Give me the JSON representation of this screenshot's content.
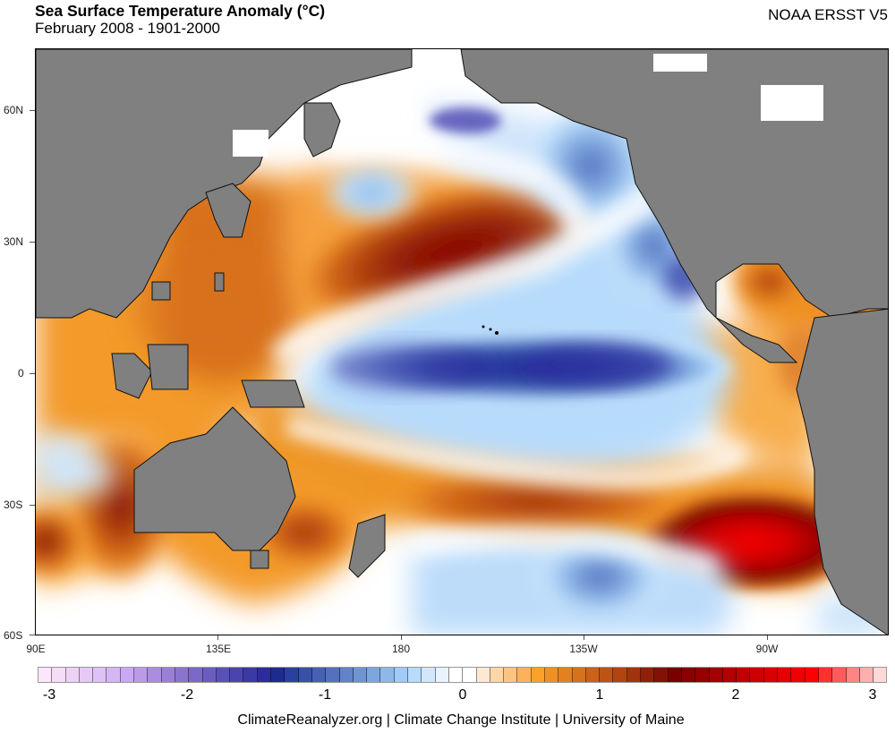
{
  "header": {
    "title": "Sea Surface Temperature Anomaly (°C)",
    "subtitle": "February 2008 - 1901-2000",
    "dataset": "NOAA ERSST V5"
  },
  "map": {
    "lat_ticks": [
      "60N",
      "30N",
      "0",
      "30S",
      "60S"
    ],
    "lon_ticks": [
      "90E",
      "135E",
      "180",
      "135W",
      "90W"
    ],
    "land_color": "#808080",
    "coast_color": "#000000"
  },
  "chart_data": {
    "type": "heatmap",
    "title": "Sea Surface Temperature Anomaly (°C)",
    "subtitle": "February 2008 - 1901-2000",
    "projection": "equirectangular",
    "lon_range": [
      "90E",
      "60W"
    ],
    "lat_range": [
      "74N",
      "60S"
    ],
    "xlabel": "",
    "ylabel": "",
    "colorbar": {
      "min": -3,
      "max": 3,
      "step": 0.1,
      "tick_labels": [
        "-3",
        "-2",
        "-1",
        "0",
        "1",
        "2",
        "3"
      ],
      "colors": [
        "#fbe6fa",
        "#f5dcf8",
        "#eed2f6",
        "#e6caf5",
        "#dec2f5",
        "#d4b6f5",
        "#caa8f5",
        "#bb9aea",
        "#aa8ce0",
        "#9a7fd8",
        "#8b74d0",
        "#7b68c8",
        "#6b5dc0",
        "#5b50b8",
        "#4b44b0",
        "#3b38a8",
        "#2c2c9c",
        "#1e2a90",
        "#2940a0",
        "#3750aa",
        "#4560b4",
        "#5470be",
        "#6282ca",
        "#6f94d4",
        "#7ea6de",
        "#8eb8e8",
        "#a0cbf6",
        "#b7dbfb",
        "#d2e7fb",
        "#e8f3fd",
        "#ffffff",
        "#ffffff",
        "#fde8d2",
        "#fdd6a8",
        "#fdc380",
        "#fcb15a",
        "#fba028",
        "#ef9024",
        "#e48020",
        "#d8711c",
        "#cc6218",
        "#bf5314",
        "#b24410",
        "#a2340c",
        "#921f08",
        "#841105",
        "#7a0000",
        "#880000",
        "#960000",
        "#a40000",
        "#b20000",
        "#c00000",
        "#cc0000",
        "#d80000",
        "#e40000",
        "#f00000",
        "#ff0000",
        "#ff3030",
        "#ff5a5a",
        "#ff8484",
        "#ffaeae",
        "#ffd8d8"
      ]
    },
    "features": [
      {
        "name": "North Pacific warm anomaly",
        "center": [
          30,
          "170W"
        ],
        "max_anomaly": 1.6
      },
      {
        "name": "Equatorial Pacific cold anomaly (La Niña)",
        "center": [
          0,
          "145W"
        ],
        "min_anomaly": -1.9
      },
      {
        "name": "Southeast Pacific warm anomaly",
        "center": [
          38,
          "95W"
        ],
        "max_anomaly": 2.4,
        "lat_hemisphere": "S"
      },
      {
        "name": "South Pacific warm band",
        "center": [
          28,
          "155W"
        ],
        "max_anomaly": 1.5,
        "lat_hemisphere": "S"
      },
      {
        "name": "South Pacific cold anomaly",
        "center": [
          43,
          "135W"
        ],
        "min_anomaly": -0.9,
        "lat_hemisphere": "S"
      },
      {
        "name": "Northeast Pacific cold anomaly",
        "center": [
          50,
          "140W"
        ],
        "min_anomaly": -1.1
      },
      {
        "name": "West Australia warm anomaly",
        "center": [
          25,
          "112E"
        ],
        "max_anomaly": 1.6,
        "lat_hemisphere": "S"
      }
    ]
  },
  "colorbar": {
    "labels": [
      "-3",
      "-2",
      "-1",
      "0",
      "1",
      "2",
      "3"
    ]
  },
  "footer": {
    "credit": "ClimateReanalyzer.org | Climate Change Institute | University of Maine"
  }
}
